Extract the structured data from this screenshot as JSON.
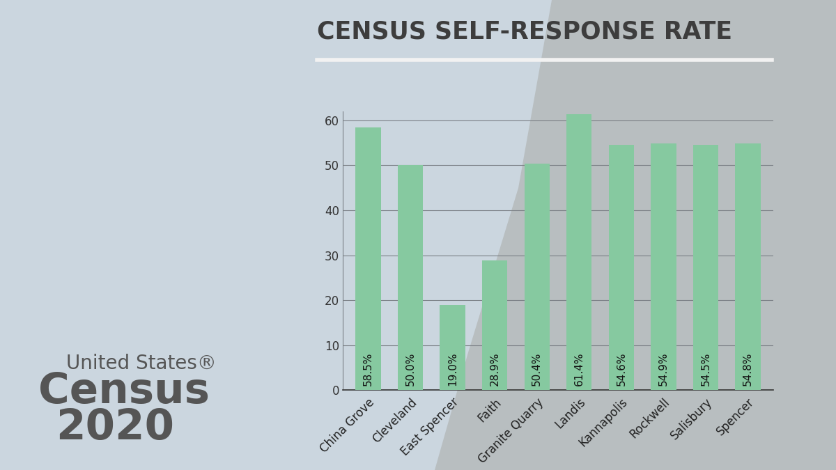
{
  "chart_data": {
    "type": "bar",
    "title": "CENSUS SELF-RESPONSE RATE",
    "categories": [
      "China Grove",
      "Cleveland",
      "East Spencer",
      "Faith",
      "Granite Quarry",
      "Landis",
      "Kannapolis",
      "Rockwell",
      "Salisbury",
      "Spencer"
    ],
    "values": [
      58.5,
      50.0,
      19.0,
      28.9,
      50.4,
      61.4,
      54.6,
      54.9,
      54.5,
      54.8
    ],
    "value_labels": [
      "58.5%",
      "50.0%",
      "19.0%",
      "28.9%",
      "50.4%",
      "61.4%",
      "54.6%",
      "54.9%",
      "54.5%",
      "54.8%"
    ],
    "color": "#86c9a0",
    "ylim": [
      0,
      62
    ],
    "yticks": [
      0,
      10,
      20,
      30,
      40,
      50,
      60
    ],
    "grid": true,
    "data_labels": true,
    "annotations": [
      "United States®",
      "Census",
      "2020"
    ]
  }
}
